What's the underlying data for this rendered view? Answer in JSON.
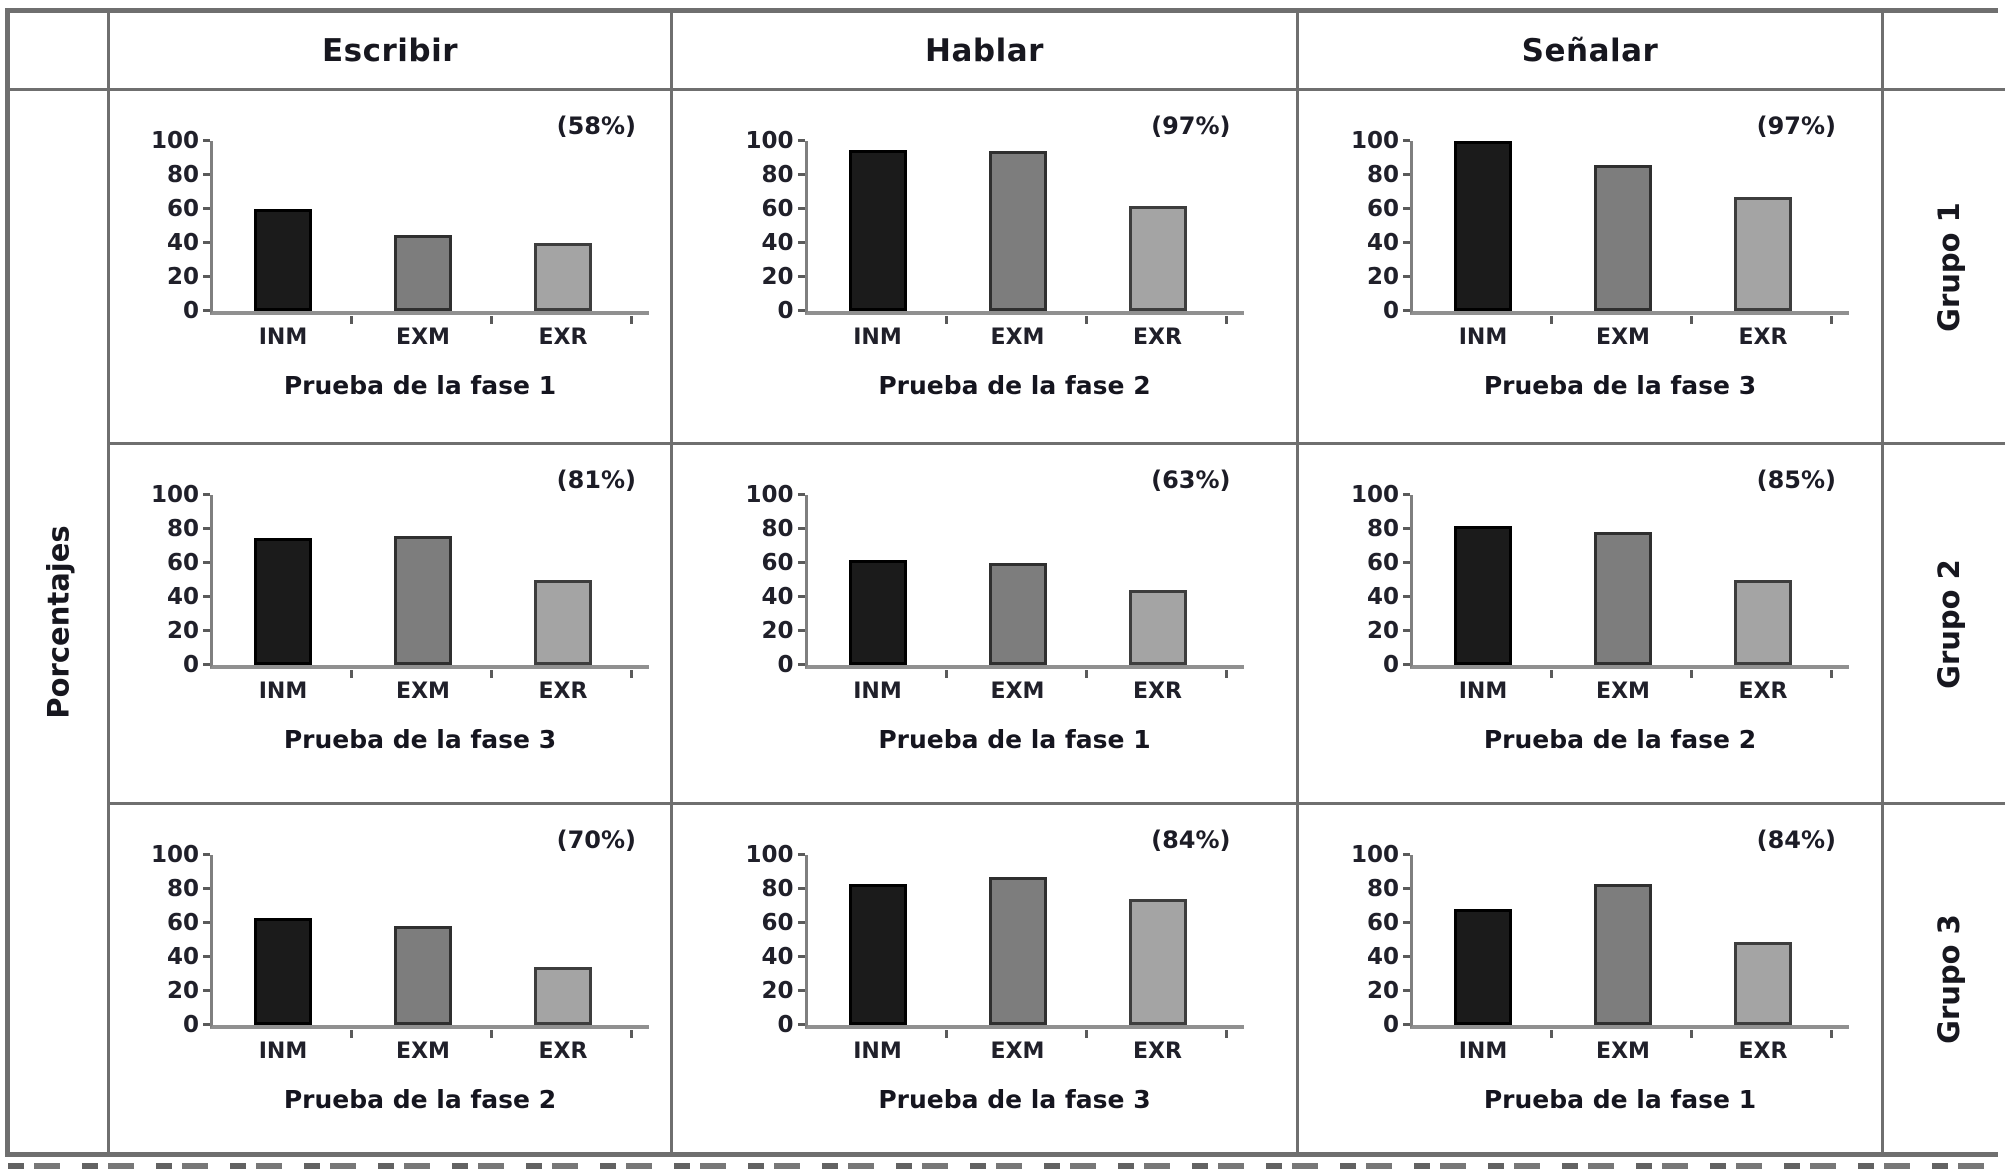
{
  "table": {
    "y_axis_label": "Porcentajes",
    "column_headers": [
      "Escribir",
      "Hablar",
      "Señalar"
    ],
    "row_headers": [
      "Grupo 1",
      "Grupo 2",
      "Grupo 3"
    ]
  },
  "chart_style": {
    "bar_colors": [
      "#1b1b1b",
      "#7d7d7d",
      "#a4a4a4"
    ],
    "bar_border_colors": [
      "#000000",
      "#2f2f2f",
      "#3d3d3d"
    ],
    "axis_color": "#7f7f7f",
    "grid": "off",
    "legend": "none"
  },
  "chart_data": [
    {
      "type": "bar",
      "column": "Escribir",
      "row": "Grupo 1",
      "categories": [
        "INM",
        "EXM",
        "EXR"
      ],
      "values": [
        60,
        45,
        40
      ],
      "annotation": "(58%)",
      "xlabel": "Prueba de la fase 1",
      "ylabel": "",
      "ylim": [
        0,
        100
      ],
      "yticks": [
        0,
        20,
        40,
        60,
        80,
        100
      ]
    },
    {
      "type": "bar",
      "column": "Hablar",
      "row": "Grupo 1",
      "categories": [
        "INM",
        "EXM",
        "EXR"
      ],
      "values": [
        95,
        94,
        62
      ],
      "annotation": "(97%)",
      "xlabel": "Prueba de la fase 2",
      "ylabel": "",
      "ylim": [
        0,
        100
      ],
      "yticks": [
        0,
        20,
        40,
        60,
        80,
        100
      ]
    },
    {
      "type": "bar",
      "column": "Señalar",
      "row": "Grupo 1",
      "categories": [
        "INM",
        "EXM",
        "EXR"
      ],
      "values": [
        100,
        86,
        67
      ],
      "annotation": "(97%)",
      "xlabel": "Prueba de la fase 3",
      "ylabel": "",
      "ylim": [
        0,
        100
      ],
      "yticks": [
        0,
        20,
        40,
        60,
        80,
        100
      ]
    },
    {
      "type": "bar",
      "column": "Escribir",
      "row": "Grupo 2",
      "categories": [
        "INM",
        "EXM",
        "EXR"
      ],
      "values": [
        75,
        76,
        50
      ],
      "annotation": "(81%)",
      "xlabel": "Prueba de la fase 3",
      "ylabel": "",
      "ylim": [
        0,
        100
      ],
      "yticks": [
        0,
        20,
        40,
        60,
        80,
        100
      ]
    },
    {
      "type": "bar",
      "column": "Hablar",
      "row": "Grupo 2",
      "categories": [
        "INM",
        "EXM",
        "EXR"
      ],
      "values": [
        62,
        60,
        44
      ],
      "annotation": "(63%)",
      "xlabel": "Prueba de la fase 1",
      "ylabel": "",
      "ylim": [
        0,
        100
      ],
      "yticks": [
        0,
        20,
        40,
        60,
        80,
        100
      ]
    },
    {
      "type": "bar",
      "column": "Señalar",
      "row": "Grupo 2",
      "categories": [
        "INM",
        "EXM",
        "EXR"
      ],
      "values": [
        82,
        78,
        50
      ],
      "annotation": "(85%)",
      "xlabel": "Prueba de la fase 2",
      "ylabel": "",
      "ylim": [
        0,
        100
      ],
      "yticks": [
        0,
        20,
        40,
        60,
        80,
        100
      ]
    },
    {
      "type": "bar",
      "column": "Escribir",
      "row": "Grupo 3",
      "categories": [
        "INM",
        "EXM",
        "EXR"
      ],
      "values": [
        63,
        58,
        34
      ],
      "annotation": "(70%)",
      "xlabel": "Prueba de la fase 2",
      "ylabel": "",
      "ylim": [
        0,
        100
      ],
      "yticks": [
        0,
        20,
        40,
        60,
        80,
        100
      ]
    },
    {
      "type": "bar",
      "column": "Hablar",
      "row": "Grupo 3",
      "categories": [
        "INM",
        "EXM",
        "EXR"
      ],
      "values": [
        83,
        87,
        74
      ],
      "annotation": "(84%)",
      "xlabel": "Prueba de la fase 3",
      "ylabel": "",
      "ylim": [
        0,
        100
      ],
      "yticks": [
        0,
        20,
        40,
        60,
        80,
        100
      ]
    },
    {
      "type": "bar",
      "column": "Señalar",
      "row": "Grupo 3",
      "categories": [
        "INM",
        "EXM",
        "EXR"
      ],
      "values": [
        68,
        83,
        49
      ],
      "annotation": "(84%)",
      "xlabel": "Prueba de la fase 1",
      "ylabel": "",
      "ylim": [
        0,
        100
      ],
      "yticks": [
        0,
        20,
        40,
        60,
        80,
        100
      ]
    }
  ]
}
